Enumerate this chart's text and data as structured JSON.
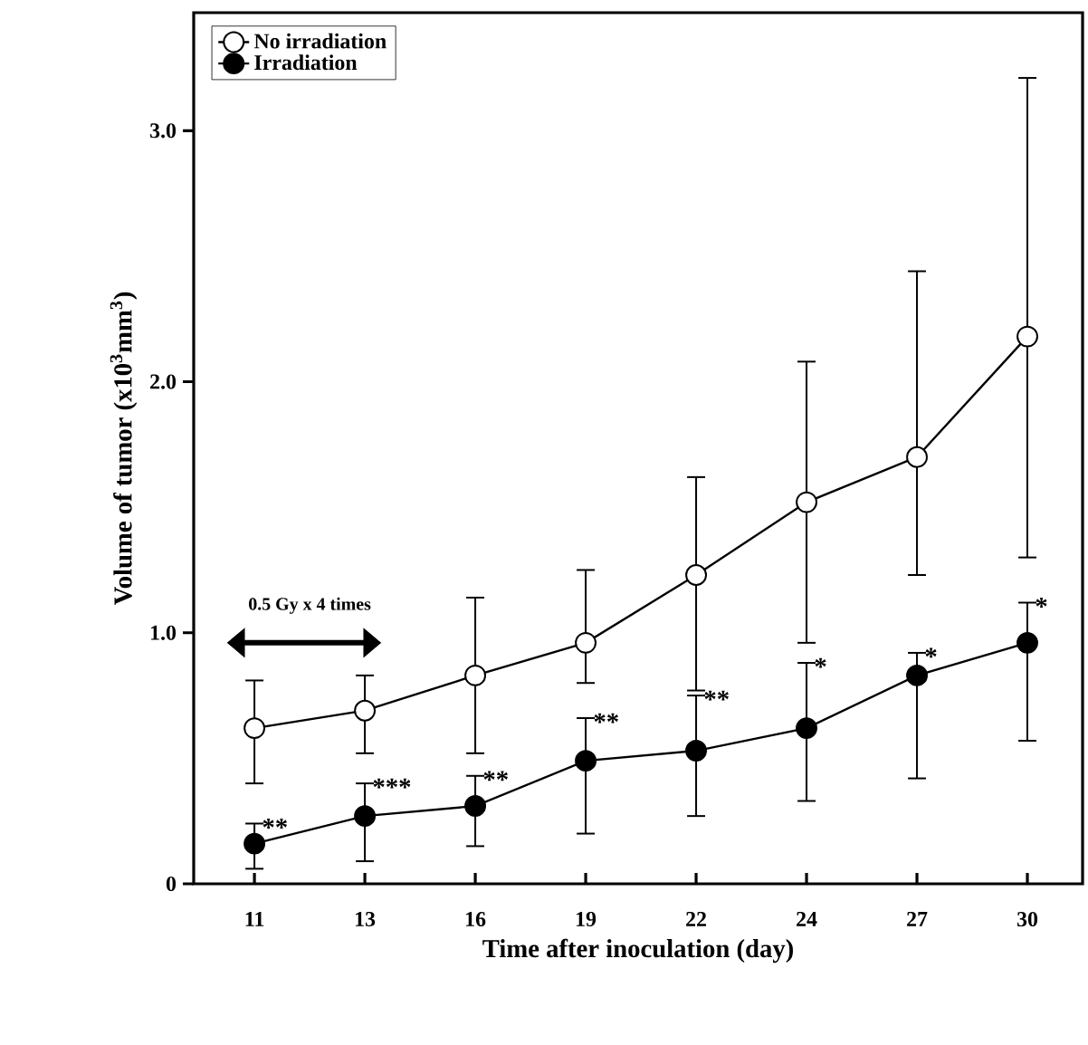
{
  "chart_data": {
    "type": "line",
    "xlabel": "Time after inoculation (day)",
    "ylabel": "Volume of tumor (x10$^{3}$mm$^{3}$)",
    "categories": [
      "11",
      "13",
      "16",
      "19",
      "22",
      "24",
      "27",
      "30"
    ],
    "ylim": [
      0,
      3.47
    ],
    "yticks": [
      0,
      {
        "value": 1,
        "label": "1.0"
      },
      {
        "value": 2,
        "label": "2.0"
      },
      {
        "value": 3,
        "label": "3.0"
      }
    ],
    "marker": "circle",
    "legend": "top left",
    "series": [
      {
        "name": "No irradiation",
        "color": "#ffffff",
        "values": [
          0.62,
          0.69,
          0.83,
          0.96,
          1.23,
          1.52,
          1.7,
          2.18
        ],
        "errors": [
          [
            0.4,
            0.81
          ],
          [
            0.52,
            0.83
          ],
          [
            0.52,
            1.14
          ],
          [
            0.8,
            1.25
          ],
          [
            0.77,
            1.62
          ],
          [
            0.96,
            2.08
          ],
          [
            1.23,
            2.44
          ],
          [
            1.3,
            3.21
          ]
        ]
      },
      {
        "name": "Irradiation",
        "color": "#000000",
        "values": [
          0.16,
          0.27,
          0.31,
          0.49,
          0.53,
          0.62,
          0.83,
          0.96
        ],
        "errors": [
          [
            0.06,
            0.24
          ],
          [
            0.09,
            0.4
          ],
          [
            0.15,
            0.43
          ],
          [
            0.2,
            0.66
          ],
          [
            0.27,
            0.75
          ],
          [
            0.33,
            0.88
          ],
          [
            0.42,
            0.92
          ],
          [
            0.57,
            1.12
          ]
        ]
      }
    ],
    "annotations": [
      "0.5 Gy x 4 times",
      "**",
      "***",
      "**",
      "**",
      "**",
      "*",
      "*",
      "*"
    ]
  }
}
